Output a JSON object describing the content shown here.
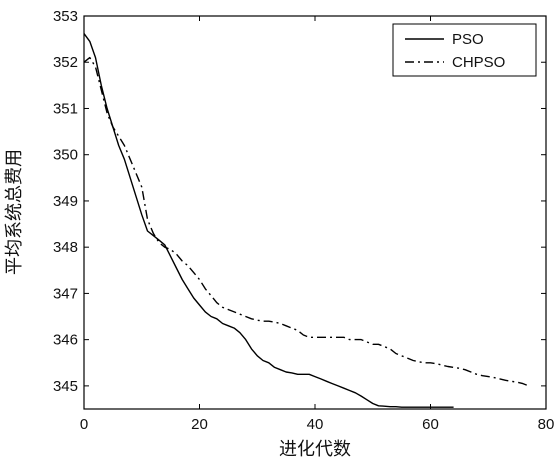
{
  "chart_data": {
    "type": "line",
    "title": "",
    "xlabel": "进化代数",
    "ylabel": "平均系统总费用",
    "xlim": [
      0,
      80
    ],
    "ylim": [
      344.5,
      353
    ],
    "x_ticks": [
      0,
      20,
      40,
      60,
      80
    ],
    "y_ticks": [
      345,
      346,
      347,
      348,
      349,
      350,
      351,
      352,
      353
    ],
    "grid": false,
    "legend_position": "top-right",
    "series": [
      {
        "name": "PSO",
        "line_style": "solid",
        "x": [
          0,
          1,
          2,
          3,
          4,
          5,
          6,
          7,
          8,
          9,
          10,
          11,
          12,
          13,
          14,
          15,
          16,
          17,
          18,
          19,
          20,
          21,
          22,
          23,
          24,
          25,
          26,
          27,
          28,
          29,
          30,
          31,
          32,
          33,
          34,
          35,
          36,
          37,
          38,
          39,
          40,
          41,
          42,
          43,
          44,
          45,
          46,
          47,
          48,
          49,
          50,
          51,
          52,
          53,
          54,
          55,
          56,
          57,
          58,
          59,
          60,
          61,
          62,
          63,
          64
        ],
        "y": [
          352.62,
          352.45,
          352.1,
          351.5,
          351.0,
          350.6,
          350.2,
          349.9,
          349.5,
          349.1,
          348.7,
          348.35,
          348.25,
          348.15,
          348.05,
          347.8,
          347.55,
          347.3,
          347.1,
          346.9,
          346.75,
          346.6,
          346.5,
          346.45,
          346.35,
          346.3,
          346.25,
          346.15,
          346.0,
          345.8,
          345.65,
          345.55,
          345.5,
          345.4,
          345.35,
          345.3,
          345.28,
          345.25,
          345.25,
          345.25,
          345.2,
          345.15,
          345.1,
          345.05,
          345.0,
          344.95,
          344.9,
          344.85,
          344.78,
          344.7,
          344.62,
          344.57,
          344.56,
          344.55,
          344.55,
          344.54,
          344.54,
          344.54,
          344.54,
          344.54,
          344.54,
          344.54,
          344.54,
          344.54,
          344.54
        ]
      },
      {
        "name": "CHPSO",
        "line_style": "dashdot",
        "x": [
          0,
          1,
          2,
          3,
          4,
          5,
          6,
          7,
          8,
          9,
          10,
          11,
          12,
          13,
          14,
          15,
          16,
          17,
          18,
          19,
          20,
          21,
          22,
          23,
          24,
          25,
          26,
          27,
          28,
          29,
          30,
          31,
          32,
          33,
          34,
          35,
          36,
          37,
          38,
          39,
          40,
          41,
          42,
          43,
          44,
          45,
          46,
          47,
          48,
          49,
          50,
          51,
          52,
          53,
          54,
          55,
          56,
          57,
          58,
          59,
          60,
          61,
          62,
          63,
          64,
          65,
          66,
          67,
          68,
          69,
          70,
          71,
          72,
          73,
          74,
          75,
          76,
          77
        ],
        "y": [
          352.0,
          352.1,
          351.9,
          351.4,
          350.9,
          350.6,
          350.4,
          350.2,
          349.9,
          349.6,
          349.3,
          348.6,
          348.3,
          348.1,
          348.0,
          347.95,
          347.85,
          347.7,
          347.6,
          347.45,
          347.3,
          347.1,
          346.95,
          346.8,
          346.7,
          346.65,
          346.6,
          346.55,
          346.5,
          346.45,
          346.42,
          346.4,
          346.4,
          346.38,
          346.35,
          346.3,
          346.25,
          346.2,
          346.1,
          346.05,
          346.05,
          346.05,
          346.05,
          346.05,
          346.05,
          346.05,
          346.0,
          346.0,
          346.0,
          345.95,
          345.9,
          345.9,
          345.85,
          345.8,
          345.7,
          345.65,
          345.6,
          345.55,
          345.52,
          345.5,
          345.5,
          345.48,
          345.45,
          345.42,
          345.4,
          345.38,
          345.35,
          345.3,
          345.25,
          345.22,
          345.2,
          345.18,
          345.15,
          345.12,
          345.1,
          345.08,
          345.05,
          345.0
        ]
      }
    ]
  }
}
